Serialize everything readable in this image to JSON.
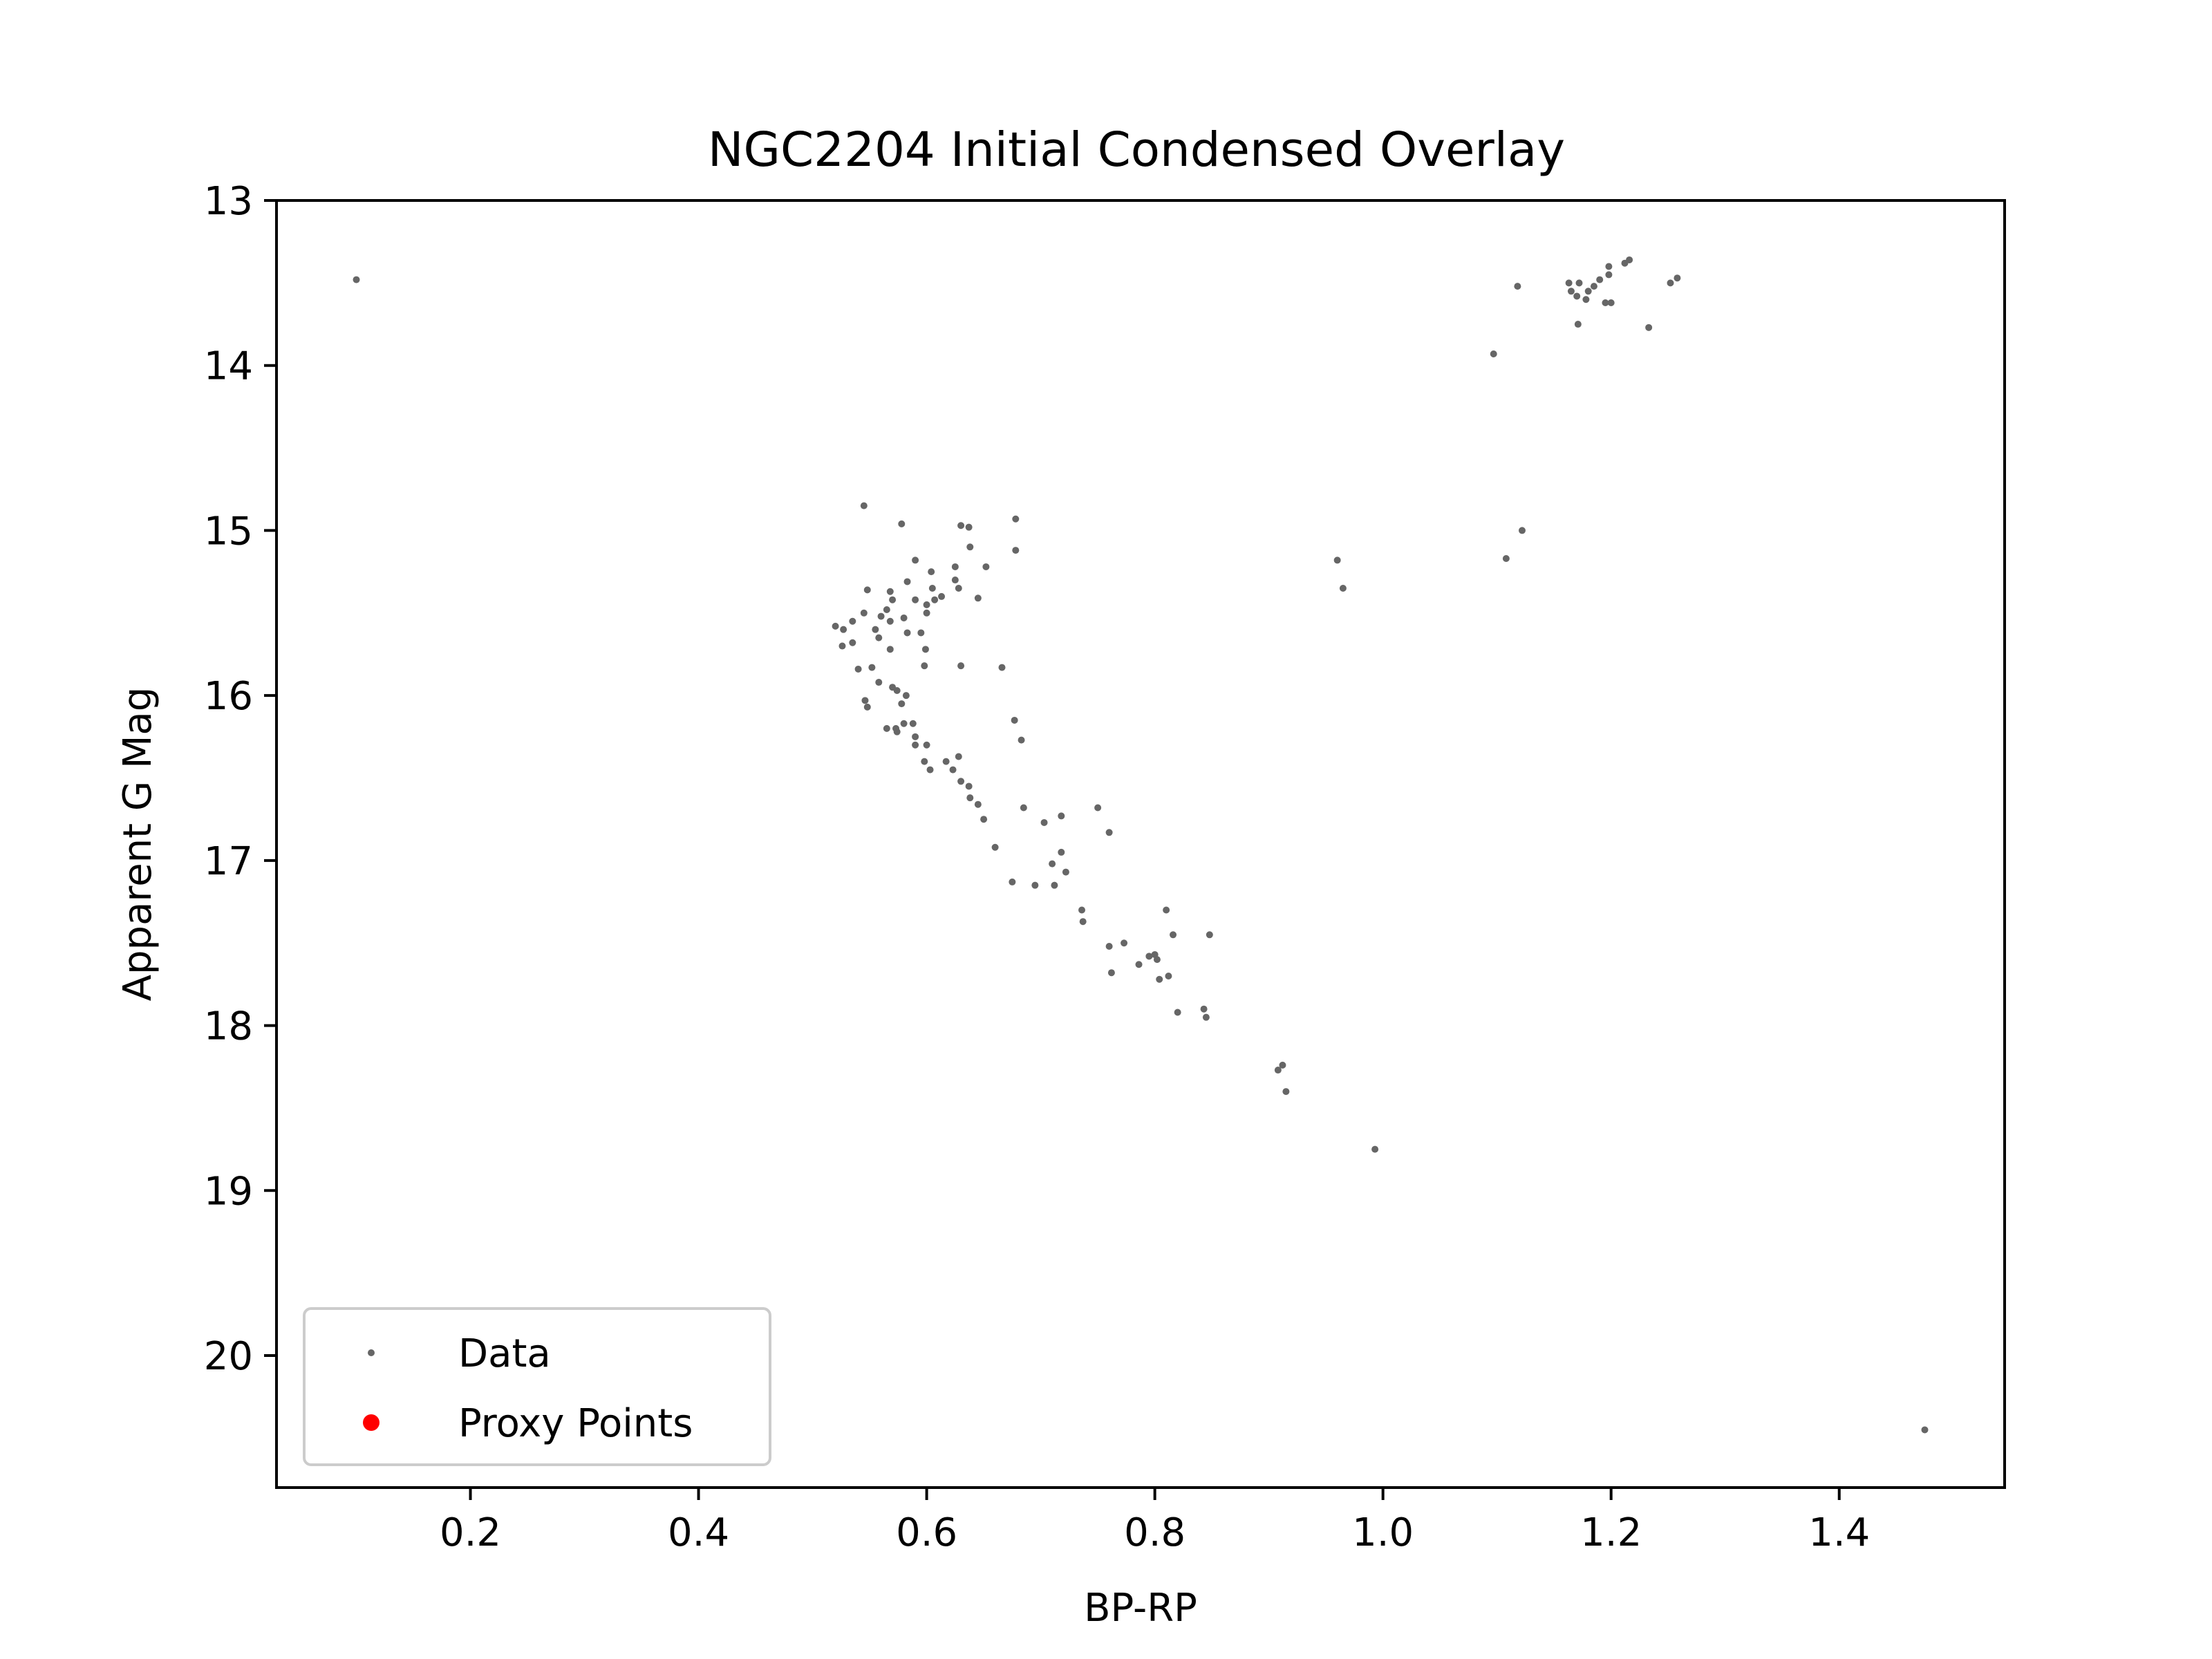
{
  "chart_data": {
    "type": "scatter",
    "title": "NGC2204 Initial Condensed Overlay",
    "xlabel": "BP-RP",
    "ylabel": "Apparent G Mag",
    "xlim": [
      0.03,
      1.545
    ],
    "ylim": [
      20.8,
      13.0
    ],
    "y_inverted": true,
    "grid": false,
    "legend_placement": "lower-left",
    "x_ticks": [
      0.2,
      0.4,
      0.6,
      0.8,
      1.0,
      1.2,
      1.4
    ],
    "x_tick_labels": [
      "0.2",
      "0.4",
      "0.6",
      "0.8",
      "1.0",
      "1.2",
      "1.4"
    ],
    "y_ticks": [
      13,
      14,
      15,
      16,
      17,
      18,
      19,
      20
    ],
    "y_tick_labels": [
      "13",
      "14",
      "15",
      "16",
      "17",
      "18",
      "19",
      "20"
    ],
    "series": [
      {
        "name": "Data",
        "color": "#666666",
        "marker": "small-dot",
        "points": [
          [
            0.1,
            13.48
          ],
          [
            1.097,
            13.93
          ],
          [
            1.118,
            13.52
          ],
          [
            1.163,
            13.5
          ],
          [
            1.165,
            13.55
          ],
          [
            1.17,
            13.58
          ],
          [
            1.172,
            13.5
          ],
          [
            1.178,
            13.6
          ],
          [
            1.18,
            13.55
          ],
          [
            1.185,
            13.52
          ],
          [
            1.19,
            13.48
          ],
          [
            1.195,
            13.62
          ],
          [
            1.198,
            13.4
          ],
          [
            1.2,
            13.62
          ],
          [
            1.216,
            13.36
          ],
          [
            1.252,
            13.5
          ],
          [
            1.258,
            13.47
          ],
          [
            1.233,
            13.77
          ],
          [
            1.171,
            13.75
          ],
          [
            1.198,
            13.45
          ],
          [
            1.212,
            13.38
          ],
          [
            0.545,
            14.85
          ],
          [
            0.578,
            14.96
          ],
          [
            0.63,
            14.97
          ],
          [
            0.637,
            14.98
          ],
          [
            0.678,
            14.93
          ],
          [
            0.638,
            15.1
          ],
          [
            0.678,
            15.12
          ],
          [
            0.652,
            15.22
          ],
          [
            0.59,
            15.18
          ],
          [
            0.604,
            15.25
          ],
          [
            0.625,
            15.22
          ],
          [
            0.625,
            15.3
          ],
          [
            0.628,
            15.35
          ],
          [
            0.605,
            15.35
          ],
          [
            0.583,
            15.31
          ],
          [
            0.548,
            15.36
          ],
          [
            0.568,
            15.37
          ],
          [
            0.57,
            15.42
          ],
          [
            0.59,
            15.42
          ],
          [
            0.607,
            15.42
          ],
          [
            0.613,
            15.4
          ],
          [
            0.645,
            15.41
          ],
          [
            0.6,
            15.45
          ],
          [
            0.6,
            15.5
          ],
          [
            0.565,
            15.48
          ],
          [
            0.56,
            15.52
          ],
          [
            0.568,
            15.55
          ],
          [
            0.58,
            15.53
          ],
          [
            0.545,
            15.5
          ],
          [
            0.535,
            15.55
          ],
          [
            0.52,
            15.58
          ],
          [
            0.527,
            15.6
          ],
          [
            0.555,
            15.6
          ],
          [
            0.583,
            15.62
          ],
          [
            0.558,
            15.65
          ],
          [
            0.595,
            15.62
          ],
          [
            0.526,
            15.7
          ],
          [
            0.535,
            15.68
          ],
          [
            0.568,
            15.72
          ],
          [
            0.599,
            15.72
          ],
          [
            0.54,
            15.84
          ],
          [
            0.552,
            15.83
          ],
          [
            0.598,
            15.82
          ],
          [
            0.63,
            15.82
          ],
          [
            0.666,
            15.83
          ],
          [
            0.558,
            15.92
          ],
          [
            0.57,
            15.95
          ],
          [
            0.574,
            15.97
          ],
          [
            0.582,
            16.0
          ],
          [
            0.578,
            16.05
          ],
          [
            0.546,
            16.03
          ],
          [
            0.548,
            16.07
          ],
          [
            0.565,
            16.2
          ],
          [
            0.573,
            16.2
          ],
          [
            0.58,
            16.17
          ],
          [
            0.574,
            16.22
          ],
          [
            0.588,
            16.17
          ],
          [
            0.59,
            16.25
          ],
          [
            0.59,
            16.3
          ],
          [
            0.6,
            16.3
          ],
          [
            0.598,
            16.4
          ],
          [
            0.603,
            16.45
          ],
          [
            0.617,
            16.4
          ],
          [
            0.623,
            16.45
          ],
          [
            0.628,
            16.37
          ],
          [
            0.63,
            16.52
          ],
          [
            0.637,
            16.55
          ],
          [
            0.638,
            16.62
          ],
          [
            0.645,
            16.66
          ],
          [
            0.65,
            16.75
          ],
          [
            0.66,
            16.92
          ],
          [
            0.677,
            16.15
          ],
          [
            0.683,
            16.27
          ],
          [
            0.685,
            16.68
          ],
          [
            0.703,
            16.77
          ],
          [
            0.718,
            16.73
          ],
          [
            0.675,
            17.13
          ],
          [
            0.695,
            17.15
          ],
          [
            0.71,
            17.02
          ],
          [
            0.712,
            17.15
          ],
          [
            0.718,
            16.95
          ],
          [
            0.722,
            17.07
          ],
          [
            0.75,
            16.68
          ],
          [
            0.76,
            16.83
          ],
          [
            0.736,
            17.3
          ],
          [
            0.737,
            17.37
          ],
          [
            0.76,
            17.52
          ],
          [
            0.762,
            17.68
          ],
          [
            0.773,
            17.5
          ],
          [
            0.786,
            17.63
          ],
          [
            0.795,
            17.58
          ],
          [
            0.8,
            17.57
          ],
          [
            0.802,
            17.6
          ],
          [
            0.804,
            17.72
          ],
          [
            0.81,
            17.3
          ],
          [
            0.812,
            17.7
          ],
          [
            0.816,
            17.45
          ],
          [
            0.82,
            17.92
          ],
          [
            0.843,
            17.9
          ],
          [
            0.845,
            17.95
          ],
          [
            0.848,
            17.45
          ],
          [
            0.908,
            18.27
          ],
          [
            0.912,
            18.24
          ],
          [
            0.915,
            18.4
          ],
          [
            0.993,
            18.75
          ],
          [
            0.96,
            15.18
          ],
          [
            0.965,
            15.35
          ],
          [
            1.108,
            15.17
          ],
          [
            1.122,
            15.0
          ],
          [
            1.475,
            20.45
          ]
        ]
      },
      {
        "name": "Proxy Points",
        "color": "#ff0000",
        "marker": "dot",
        "points": []
      }
    ]
  }
}
